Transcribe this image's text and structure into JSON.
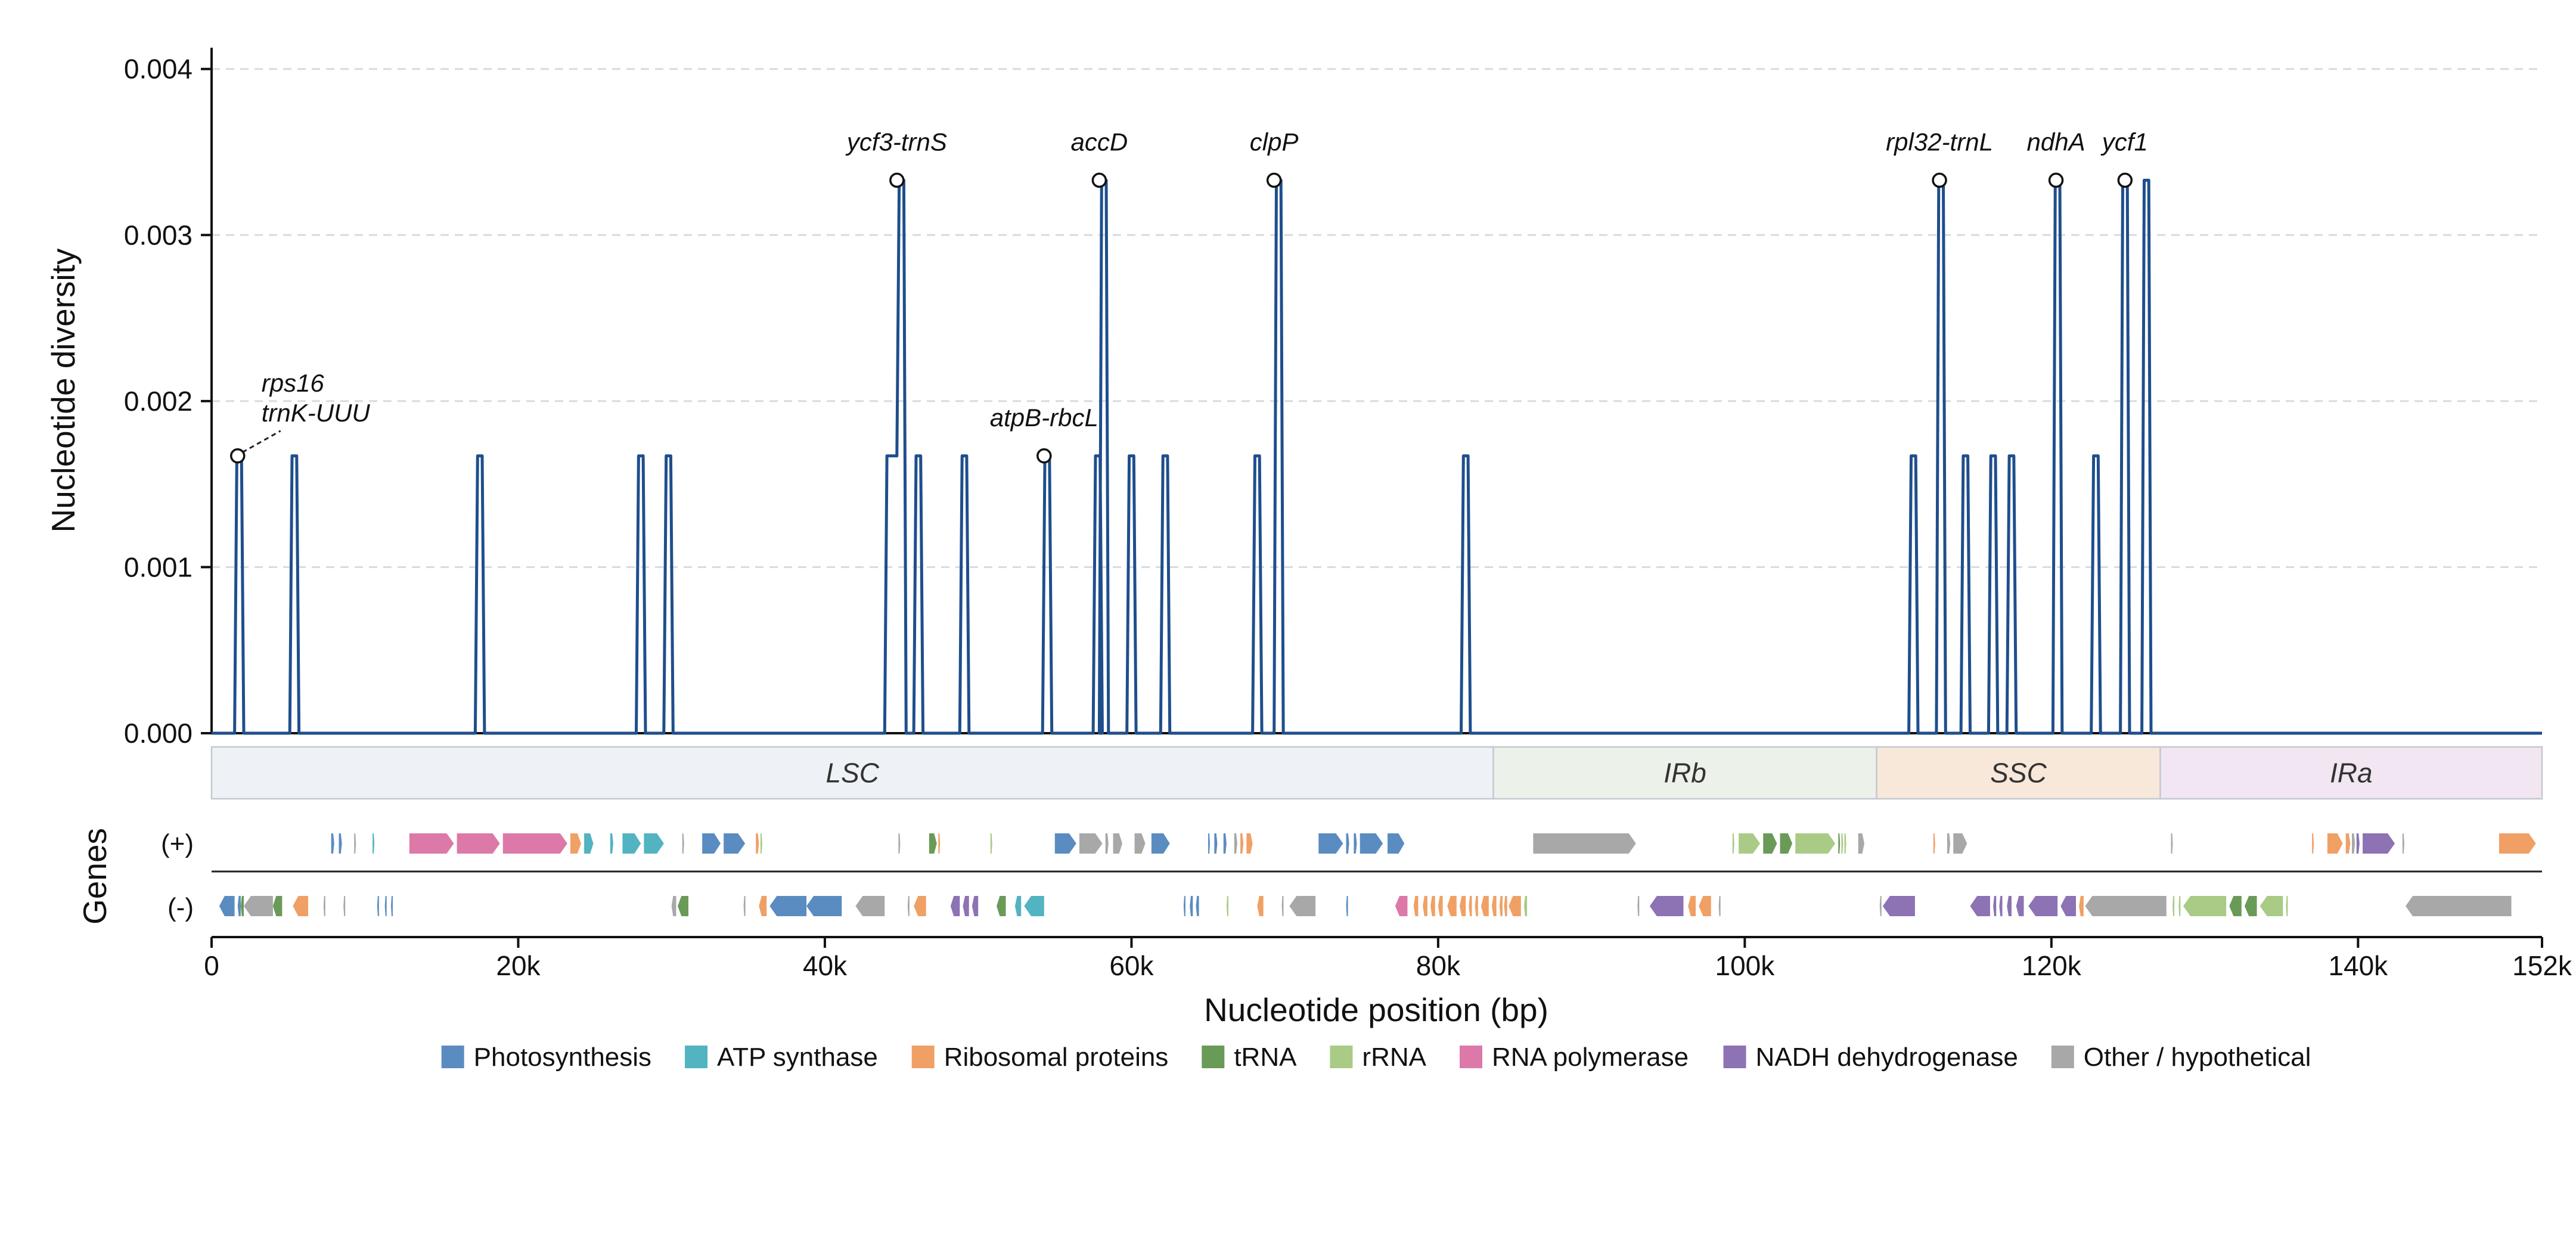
{
  "chart_data": {
    "type": "line",
    "ylabel": "Nucleotide diversity",
    "xlabel": "Nucleotide position (bp)",
    "genes_label": "Genes",
    "strand_labels": {
      "plus": "(+)",
      "minus": "(-)"
    },
    "xlim": [
      0,
      152000
    ],
    "ylim": [
      0,
      0.0042
    ],
    "yticks": [
      0.0,
      0.001,
      0.002,
      0.003,
      0.004
    ],
    "ytick_labels": [
      "0.000",
      "0.001",
      "0.002",
      "0.003",
      "0.004"
    ],
    "xticks": [
      0,
      20000,
      40000,
      60000,
      80000,
      100000,
      120000,
      140000,
      152000
    ],
    "xtick_labels": [
      "0",
      "20k",
      "40k",
      "60k",
      "80k",
      "100k",
      "120k",
      "140k",
      "152k"
    ],
    "grid": "horizontal dashed",
    "line_color": "#1f4e8c",
    "peak_width_bp": 600,
    "peaks": [
      {
        "x": 1800,
        "y": 0.00167
      },
      {
        "x": 5400,
        "y": 0.00167
      },
      {
        "x": 17500,
        "y": 0.00167
      },
      {
        "x": 28000,
        "y": 0.00167
      },
      {
        "x": 29800,
        "y": 0.00167
      },
      {
        "x": 45000,
        "y": 0.00333,
        "shoulder_x": 44200,
        "shoulder_y": 0.00167
      },
      {
        "x": 46100,
        "y": 0.00167
      },
      {
        "x": 49100,
        "y": 0.00167
      },
      {
        "x": 54500,
        "y": 0.00167
      },
      {
        "x": 57800,
        "y": 0.00167
      },
      {
        "x": 58200,
        "y": 0.00333
      },
      {
        "x": 60000,
        "y": 0.00167
      },
      {
        "x": 62200,
        "y": 0.00167
      },
      {
        "x": 68200,
        "y": 0.00167
      },
      {
        "x": 69600,
        "y": 0.00333
      },
      {
        "x": 81800,
        "y": 0.00167
      },
      {
        "x": 111000,
        "y": 0.00167
      },
      {
        "x": 112800,
        "y": 0.00333
      },
      {
        "x": 114400,
        "y": 0.00167
      },
      {
        "x": 116200,
        "y": 0.00167
      },
      {
        "x": 117400,
        "y": 0.00167
      },
      {
        "x": 120400,
        "y": 0.00333
      },
      {
        "x": 122900,
        "y": 0.00167
      },
      {
        "x": 124800,
        "y": 0.00333
      },
      {
        "x": 126200,
        "y": 0.00333
      }
    ],
    "annotations": [
      {
        "text": "rps16",
        "x": 1700,
        "y": 0.00167,
        "label_dx": 40,
        "label_dy": -108,
        "leader": true
      },
      {
        "text": "trnK-UUU",
        "x": 1700,
        "y": 0.00167,
        "label_dx": 40,
        "label_dy": -58,
        "leader": false
      },
      {
        "text": "ycf3-trnS",
        "x": 44700,
        "y": 0.00333
      },
      {
        "text": "atpB-rbcL",
        "x": 54300,
        "y": 0.00167
      },
      {
        "text": "accD",
        "x": 57900,
        "y": 0.00333
      },
      {
        "text": "clpP",
        "x": 69300,
        "y": 0.00333
      },
      {
        "text": "rpl32-trnL",
        "x": 112700,
        "y": 0.00333
      },
      {
        "text": "ndhA",
        "x": 120300,
        "y": 0.00333
      },
      {
        "text": "ycf1",
        "x": 124800,
        "y": 0.00333
      }
    ],
    "regions": [
      {
        "name": "LSC",
        "start": 0,
        "end": 83600,
        "color": "#eef2f6"
      },
      {
        "name": "IRb",
        "start": 83600,
        "end": 108600,
        "color": "#ecf1ea"
      },
      {
        "name": "SSC",
        "start": 108600,
        "end": 127100,
        "color": "#f7e8da"
      },
      {
        "name": "IRa",
        "start": 127100,
        "end": 152000,
        "color": "#f1e6f1"
      }
    ],
    "legend": [
      {
        "name": "Photosynthesis",
        "color": "#5b8cc1"
      },
      {
        "name": "ATP synthase",
        "color": "#52b3c1"
      },
      {
        "name": "Ribosomal proteins",
        "color": "#f0a065"
      },
      {
        "name": "tRNA",
        "color": "#6a9a58"
      },
      {
        "name": "rRNA",
        "color": "#a9cb86"
      },
      {
        "name": "RNA polymerase",
        "color": "#dc79a8"
      },
      {
        "name": "NADH dehydrogenase",
        "color": "#8d72b4"
      },
      {
        "name": "Other / hypothetical",
        "color": "#a8a8a8"
      }
    ],
    "legend_placement": "bottom",
    "genes_plus": [
      [
        7800,
        8000,
        "Photosynthesis"
      ],
      [
        8300,
        8500,
        "Photosynthesis"
      ],
      [
        9300,
        9400,
        "Other / hypothetical"
      ],
      [
        10500,
        10600,
        "ATP synthase"
      ],
      [
        12900,
        15800,
        "RNA polymerase"
      ],
      [
        16000,
        18800,
        "RNA polymerase"
      ],
      [
        19000,
        23200,
        "RNA polymerase"
      ],
      [
        23400,
        24100,
        "Ribosomal proteins"
      ],
      [
        24300,
        24900,
        "ATP synthase"
      ],
      [
        26000,
        26200,
        "ATP synthase"
      ],
      [
        26800,
        28000,
        "ATP synthase"
      ],
      [
        28200,
        29500,
        "ATP synthase"
      ],
      [
        30700,
        30800,
        "Other / hypothetical"
      ],
      [
        32000,
        33200,
        "Photosynthesis"
      ],
      [
        33400,
        34800,
        "Photosynthesis"
      ],
      [
        35500,
        35700,
        "Ribosomal proteins"
      ],
      [
        35800,
        35900,
        "rRNA"
      ],
      [
        44800,
        44900,
        "Other / hypothetical"
      ],
      [
        46800,
        47300,
        "tRNA"
      ],
      [
        47400,
        47500,
        "Ribosomal proteins"
      ],
      [
        50800,
        50900,
        "rRNA"
      ],
      [
        55000,
        56400,
        "Photosynthesis"
      ],
      [
        56600,
        58100,
        "Other / hypothetical"
      ],
      [
        58300,
        58500,
        "Other / hypothetical"
      ],
      [
        58800,
        59400,
        "Other / hypothetical"
      ],
      [
        60200,
        60900,
        "Other / hypothetical"
      ],
      [
        61300,
        62500,
        "Photosynthesis"
      ],
      [
        65000,
        65100,
        "Photosynthesis"
      ],
      [
        65400,
        65600,
        "Photosynthesis"
      ],
      [
        66000,
        66200,
        "Photosynthesis"
      ],
      [
        66700,
        66900,
        "Other / hypothetical"
      ],
      [
        67100,
        67300,
        "Ribosomal proteins"
      ],
      [
        67500,
        67900,
        "Ribosomal proteins"
      ],
      [
        72200,
        73800,
        "Photosynthesis"
      ],
      [
        74000,
        74200,
        "Photosynthesis"
      ],
      [
        74500,
        74700,
        "Photosynthesis"
      ],
      [
        74900,
        76400,
        "Photosynthesis"
      ],
      [
        76700,
        77800,
        "Photosynthesis"
      ],
      [
        86200,
        92900,
        "Other / hypothetical"
      ],
      [
        99200,
        99300,
        "rRNA"
      ],
      [
        99600,
        101000,
        "rRNA"
      ],
      [
        101200,
        102100,
        "tRNA"
      ],
      [
        102300,
        103100,
        "tRNA"
      ],
      [
        103300,
        105900,
        "rRNA"
      ],
      [
        106100,
        106200,
        "tRNA"
      ],
      [
        106300,
        106400,
        "rRNA"
      ],
      [
        106500,
        106600,
        "rRNA"
      ],
      [
        107400,
        107800,
        "Other / hypothetical"
      ],
      [
        112300,
        112400,
        "Ribosomal proteins"
      ],
      [
        113200,
        113400,
        "Other / hypothetical"
      ],
      [
        113600,
        114500,
        "Other / hypothetical"
      ],
      [
        127800,
        127900,
        "Other / hypothetical"
      ],
      [
        137000,
        137100,
        "Ribosomal proteins"
      ],
      [
        138000,
        139000,
        "Ribosomal proteins"
      ],
      [
        139200,
        139500,
        "Ribosomal proteins"
      ],
      [
        139600,
        139800,
        "Other / hypothetical"
      ],
      [
        139900,
        140100,
        "NADH dehydrogenase"
      ],
      [
        140300,
        142400,
        "NADH dehydrogenase"
      ],
      [
        142900,
        143000,
        "Other / hypothetical"
      ],
      [
        149200,
        151600,
        "Ribosomal proteins"
      ]
    ],
    "genes_minus": [
      [
        500,
        1500,
        "Photosynthesis"
      ],
      [
        1700,
        1900,
        "Photosynthesis"
      ],
      [
        1900,
        2100,
        "tRNA"
      ],
      [
        2100,
        4000,
        "Other / hypothetical"
      ],
      [
        4000,
        4600,
        "tRNA"
      ],
      [
        5300,
        6300,
        "Ribosomal proteins"
      ],
      [
        7300,
        7400,
        "Other / hypothetical"
      ],
      [
        8600,
        8700,
        "Other / hypothetical"
      ],
      [
        10800,
        10900,
        "Photosynthesis"
      ],
      [
        11300,
        11400,
        "Photosynthesis"
      ],
      [
        11700,
        11800,
        "Photosynthesis"
      ],
      [
        30000,
        30300,
        "Other / hypothetical"
      ],
      [
        30400,
        31100,
        "tRNA"
      ],
      [
        34700,
        34800,
        "Other / hypothetical"
      ],
      [
        35700,
        36200,
        "Ribosomal proteins"
      ],
      [
        36400,
        38800,
        "Photosynthesis"
      ],
      [
        38800,
        41100,
        "Photosynthesis"
      ],
      [
        42000,
        43900,
        "Other / hypothetical"
      ],
      [
        45400,
        45500,
        "Other / hypothetical"
      ],
      [
        45800,
        46600,
        "Ribosomal proteins"
      ],
      [
        48200,
        48800,
        "NADH dehydrogenase"
      ],
      [
        49000,
        49400,
        "NADH dehydrogenase"
      ],
      [
        49600,
        50000,
        "NADH dehydrogenase"
      ],
      [
        51200,
        51800,
        "tRNA"
      ],
      [
        52400,
        52800,
        "ATP synthase"
      ],
      [
        53000,
        54300,
        "ATP synthase"
      ],
      [
        63400,
        63500,
        "Photosynthesis"
      ],
      [
        63800,
        64000,
        "Photosynthesis"
      ],
      [
        64200,
        64400,
        "Photosynthesis"
      ],
      [
        66200,
        66300,
        "rRNA"
      ],
      [
        68200,
        68600,
        "Ribosomal proteins"
      ],
      [
        69800,
        69900,
        "Other / hypothetical"
      ],
      [
        70300,
        72000,
        "Other / hypothetical"
      ],
      [
        74000,
        74100,
        "Photosynthesis"
      ],
      [
        77200,
        78000,
        "RNA polymerase"
      ],
      [
        78400,
        78700,
        "Ribosomal proteins"
      ],
      [
        79000,
        79300,
        "Ribosomal proteins"
      ],
      [
        79500,
        79800,
        "Ribosomal proteins"
      ],
      [
        80000,
        80300,
        "Ribosomal proteins"
      ],
      [
        80600,
        81200,
        "Ribosomal proteins"
      ],
      [
        81400,
        81800,
        "Ribosomal proteins"
      ],
      [
        82000,
        82200,
        "Ribosomal proteins"
      ],
      [
        82400,
        82600,
        "Ribosomal proteins"
      ],
      [
        82800,
        83300,
        "Ribosomal proteins"
      ],
      [
        83500,
        83800,
        "Ribosomal proteins"
      ],
      [
        84000,
        84200,
        "Ribosomal proteins"
      ],
      [
        84300,
        84500,
        "Ribosomal proteins"
      ],
      [
        84600,
        85400,
        "Ribosomal proteins"
      ],
      [
        85600,
        85800,
        "rRNA"
      ],
      [
        93000,
        93100,
        "Other / hypothetical"
      ],
      [
        93800,
        96000,
        "NADH dehydrogenase"
      ],
      [
        96300,
        96800,
        "Ribosomal proteins"
      ],
      [
        97000,
        97800,
        "Ribosomal proteins"
      ],
      [
        98300,
        98400,
        "Other / hypothetical"
      ],
      [
        108800,
        108900,
        "Other / hypothetical"
      ],
      [
        109000,
        111100,
        "NADH dehydrogenase"
      ],
      [
        114700,
        116000,
        "NADH dehydrogenase"
      ],
      [
        116200,
        116400,
        "NADH dehydrogenase"
      ],
      [
        116600,
        116800,
        "NADH dehydrogenase"
      ],
      [
        117100,
        117400,
        "NADH dehydrogenase"
      ],
      [
        117700,
        118200,
        "NADH dehydrogenase"
      ],
      [
        118500,
        120400,
        "NADH dehydrogenase"
      ],
      [
        120600,
        121600,
        "NADH dehydrogenase"
      ],
      [
        121800,
        122100,
        "Ribosomal proteins"
      ],
      [
        122200,
        127500,
        "Other / hypothetical"
      ],
      [
        127900,
        128000,
        "rRNA"
      ],
      [
        128300,
        128400,
        "rRNA"
      ],
      [
        128600,
        131400,
        "rRNA"
      ],
      [
        131600,
        132400,
        "tRNA"
      ],
      [
        132600,
        133400,
        "tRNA"
      ],
      [
        133600,
        135100,
        "rRNA"
      ],
      [
        135300,
        135400,
        "rRNA"
      ],
      [
        143100,
        150000,
        "Other / hypothetical"
      ]
    ]
  }
}
